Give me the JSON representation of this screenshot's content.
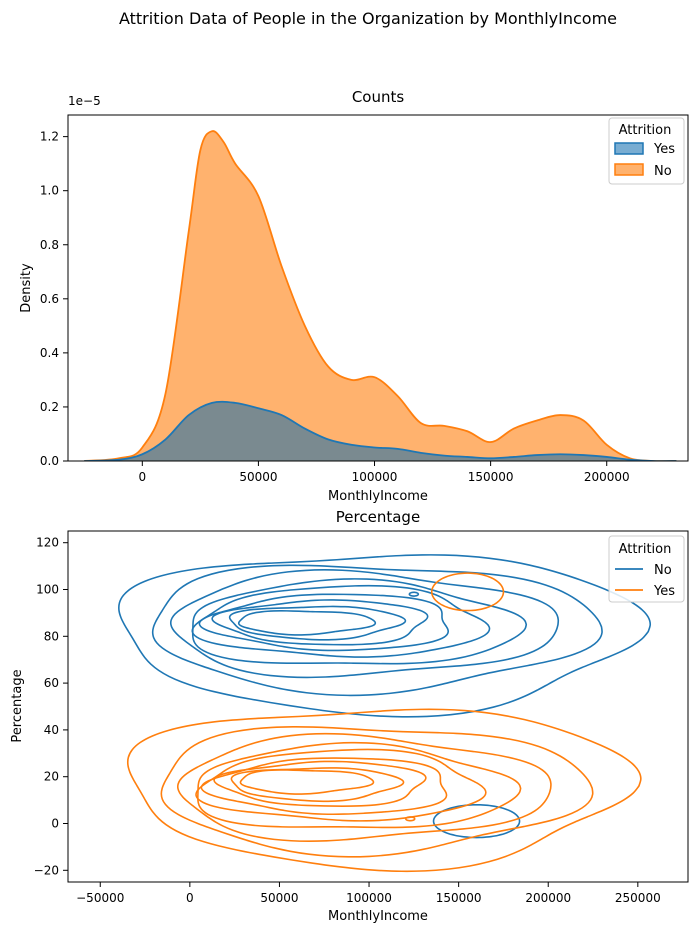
{
  "figure_title": "Attrition Data of People in the Organization by MonthlyIncome",
  "colors": {
    "blue": "#1f77b4",
    "orange": "#ff7f0e",
    "overlap": "#7a8a90"
  },
  "chart_data": [
    {
      "type": "area",
      "title": "Counts",
      "xlabel": "MonthlyIncome",
      "ylabel": "Density",
      "y_offset_label": "1e−5",
      "xlim": [
        -32000,
        235000
      ],
      "ylim": [
        0,
        1.28
      ],
      "x_ticks": [
        0,
        50000,
        100000,
        150000,
        200000
      ],
      "x_tick_labels": [
        "0",
        "50000",
        "100000",
        "150000",
        "200000"
      ],
      "y_ticks": [
        0,
        0.2,
        0.4,
        0.6,
        0.8,
        1.0,
        1.2
      ],
      "y_tick_labels": [
        "0.0",
        "0.2",
        "0.4",
        "0.6",
        "0.8",
        "1.0",
        "1.2"
      ],
      "legend": {
        "title": "Attrition",
        "position": "upper right",
        "entries": [
          "Yes",
          "No"
        ]
      },
      "series": [
        {
          "name": "No",
          "x": [
            -25000,
            -10000,
            0,
            10000,
            20000,
            25000,
            30000,
            35000,
            40000,
            50000,
            60000,
            70000,
            80000,
            90000,
            100000,
            110000,
            120000,
            130000,
            140000,
            150000,
            160000,
            170000,
            180000,
            190000,
            200000,
            210000,
            220000,
            230000
          ],
          "values": [
            0.0,
            0.01,
            0.05,
            0.25,
            0.85,
            1.15,
            1.22,
            1.18,
            1.1,
            0.98,
            0.72,
            0.5,
            0.35,
            0.3,
            0.31,
            0.24,
            0.14,
            0.13,
            0.11,
            0.07,
            0.12,
            0.15,
            0.17,
            0.15,
            0.06,
            0.01,
            0.0,
            0.0
          ]
        },
        {
          "name": "Yes",
          "x": [
            -25000,
            -10000,
            0,
            10000,
            20000,
            30000,
            40000,
            50000,
            60000,
            70000,
            80000,
            90000,
            100000,
            110000,
            120000,
            130000,
            140000,
            150000,
            160000,
            170000,
            180000,
            190000,
            200000,
            210000,
            220000,
            230000
          ],
          "values": [
            0.0,
            0.005,
            0.025,
            0.08,
            0.17,
            0.215,
            0.215,
            0.195,
            0.17,
            0.12,
            0.08,
            0.06,
            0.05,
            0.045,
            0.03,
            0.02,
            0.015,
            0.01,
            0.015,
            0.022,
            0.025,
            0.022,
            0.015,
            0.005,
            0.0,
            0.0
          ]
        }
      ]
    },
    {
      "type": "contour",
      "title": "Percentage",
      "xlabel": "MonthlyIncome",
      "ylabel": "Percentage",
      "xlim": [
        -68000,
        278000
      ],
      "ylim": [
        -25,
        125
      ],
      "x_ticks": [
        -50000,
        0,
        50000,
        100000,
        150000,
        200000,
        250000
      ],
      "x_tick_labels": [
        "−50000",
        "0",
        "50000",
        "100000",
        "150000",
        "200000",
        "250000"
      ],
      "y_ticks": [
        -20,
        0,
        20,
        40,
        60,
        80,
        100,
        120
      ],
      "y_tick_labels": [
        "−20",
        "0",
        "20",
        "40",
        "60",
        "80",
        "100",
        "120"
      ],
      "legend": {
        "title": "Attrition",
        "position": "upper right",
        "entries": [
          "No",
          "Yes"
        ]
      },
      "series": [
        {
          "name": "No",
          "levels": [
            {
              "cx": 105000,
              "cy": 82,
              "rx": 145000,
              "ry": 34
            },
            {
              "cx": 100000,
              "cy": 84,
              "rx": 125000,
              "ry": 27
            },
            {
              "cx": 95000,
              "cy": 85,
              "rx": 108000,
              "ry": 22
            },
            {
              "cx": 90000,
              "cy": 85,
              "rx": 93000,
              "ry": 18
            },
            {
              "cx": 85000,
              "cy": 86,
              "rx": 80000,
              "ry": 15
            },
            {
              "cx": 80000,
              "cy": 86,
              "rx": 68000,
              "ry": 12
            },
            {
              "cx": 75000,
              "cy": 86,
              "rx": 58000,
              "ry": 9.5
            },
            {
              "cx": 70000,
              "cy": 86,
              "rx": 48000,
              "ry": 7
            },
            {
              "cx": 64000,
              "cy": 86,
              "rx": 38000,
              "ry": 5
            }
          ],
          "islands": [
            {
              "cx": 160000,
              "cy": 1,
              "rx": 24000,
              "ry": 7
            },
            {
              "cx": 125000,
              "cy": 98,
              "rx": 2500,
              "ry": 0.8
            }
          ]
        },
        {
          "name": "Yes",
          "levels": [
            {
              "cx": 105000,
              "cy": 16,
              "rx": 140000,
              "ry": 34
            },
            {
              "cx": 100000,
              "cy": 15,
              "rx": 120000,
              "ry": 27
            },
            {
              "cx": 95000,
              "cy": 15,
              "rx": 104000,
              "ry": 22
            },
            {
              "cx": 90000,
              "cy": 15,
              "rx": 90000,
              "ry": 18
            },
            {
              "cx": 85000,
              "cy": 16,
              "rx": 78000,
              "ry": 15
            },
            {
              "cx": 80000,
              "cy": 16,
              "rx": 67000,
              "ry": 12
            },
            {
              "cx": 75000,
              "cy": 17,
              "rx": 57000,
              "ry": 9.5
            },
            {
              "cx": 70000,
              "cy": 17,
              "rx": 47000,
              "ry": 7
            },
            {
              "cx": 64000,
              "cy": 18,
              "rx": 37000,
              "ry": 5
            }
          ],
          "islands": [
            {
              "cx": 155000,
              "cy": 99,
              "rx": 20000,
              "ry": 8
            },
            {
              "cx": 123000,
              "cy": 2,
              "rx": 2500,
              "ry": 0.8
            }
          ]
        }
      ]
    }
  ]
}
